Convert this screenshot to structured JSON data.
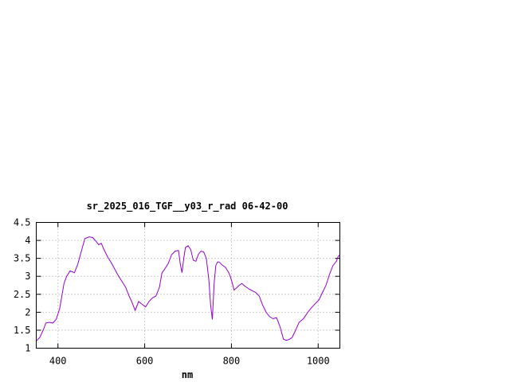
{
  "chart_data": {
    "type": "line",
    "title": "sr_2025_016_TGF__y03_r_rad 06-42-00",
    "xlabel": "nm",
    "ylabel": "",
    "xlim": [
      350,
      1050
    ],
    "ylim": [
      1,
      4.5
    ],
    "grid": true,
    "x_ticks": [
      400,
      600,
      800,
      1000
    ],
    "y_ticks": [
      1,
      1.5,
      2,
      2.5,
      3,
      3.5,
      4,
      4.5
    ],
    "x_tick_labels": [
      "400",
      "600",
      "800",
      "1000"
    ],
    "y_tick_labels": [
      "1",
      "1.5",
      "2",
      "2.5",
      "3",
      "3.5",
      "4",
      "4.5"
    ],
    "series": [
      {
        "name": "",
        "color": "#9400d3",
        "x": [
          350,
          358,
          366,
          372,
          380,
          388,
          396,
          404,
          414,
          420,
          428,
          438,
          446,
          454,
          462,
          472,
          480,
          486,
          494,
          500,
          506,
          514,
          522,
          530,
          540,
          548,
          556,
          564,
          570,
          578,
          586,
          594,
          602,
          610,
          618,
          626,
          634,
          640,
          646,
          654,
          662,
          670,
          678,
          682,
          686,
          690,
          694,
          700,
          706,
          712,
          718,
          724,
          730,
          736,
          742,
          748,
          752,
          756,
          760,
          764,
          768,
          772,
          778,
          786,
          794,
          800,
          806,
          812,
          818,
          824,
          832,
          840,
          848,
          856,
          864,
          872,
          880,
          888,
          896,
          904,
          912,
          920,
          926,
          930,
          934,
          940,
          948,
          956,
          966,
          976,
          984,
          994,
          1002,
          1010,
          1018,
          1026,
          1034,
          1042,
          1046,
          1050
        ],
        "y": [
          1.2,
          1.3,
          1.5,
          1.7,
          1.72,
          1.7,
          1.8,
          2.1,
          2.8,
          3.0,
          3.15,
          3.1,
          3.35,
          3.7,
          4.05,
          4.1,
          4.08,
          4.0,
          3.88,
          3.92,
          3.75,
          3.55,
          3.4,
          3.22,
          3.0,
          2.85,
          2.7,
          2.45,
          2.3,
          2.05,
          2.3,
          2.22,
          2.15,
          2.3,
          2.4,
          2.45,
          2.7,
          3.1,
          3.2,
          3.35,
          3.6,
          3.7,
          3.72,
          3.35,
          3.1,
          3.5,
          3.8,
          3.85,
          3.75,
          3.45,
          3.42,
          3.62,
          3.7,
          3.68,
          3.5,
          2.9,
          2.2,
          1.8,
          2.8,
          3.3,
          3.4,
          3.4,
          3.32,
          3.25,
          3.1,
          2.9,
          2.62,
          2.68,
          2.75,
          2.8,
          2.72,
          2.65,
          2.6,
          2.55,
          2.45,
          2.2,
          2.0,
          1.88,
          1.82,
          1.85,
          1.6,
          1.25,
          1.22,
          1.23,
          1.25,
          1.3,
          1.5,
          1.72,
          1.82,
          2.0,
          2.12,
          2.25,
          2.35,
          2.55,
          2.75,
          3.05,
          3.3,
          3.42,
          3.55,
          3.6
        ]
      }
    ]
  }
}
